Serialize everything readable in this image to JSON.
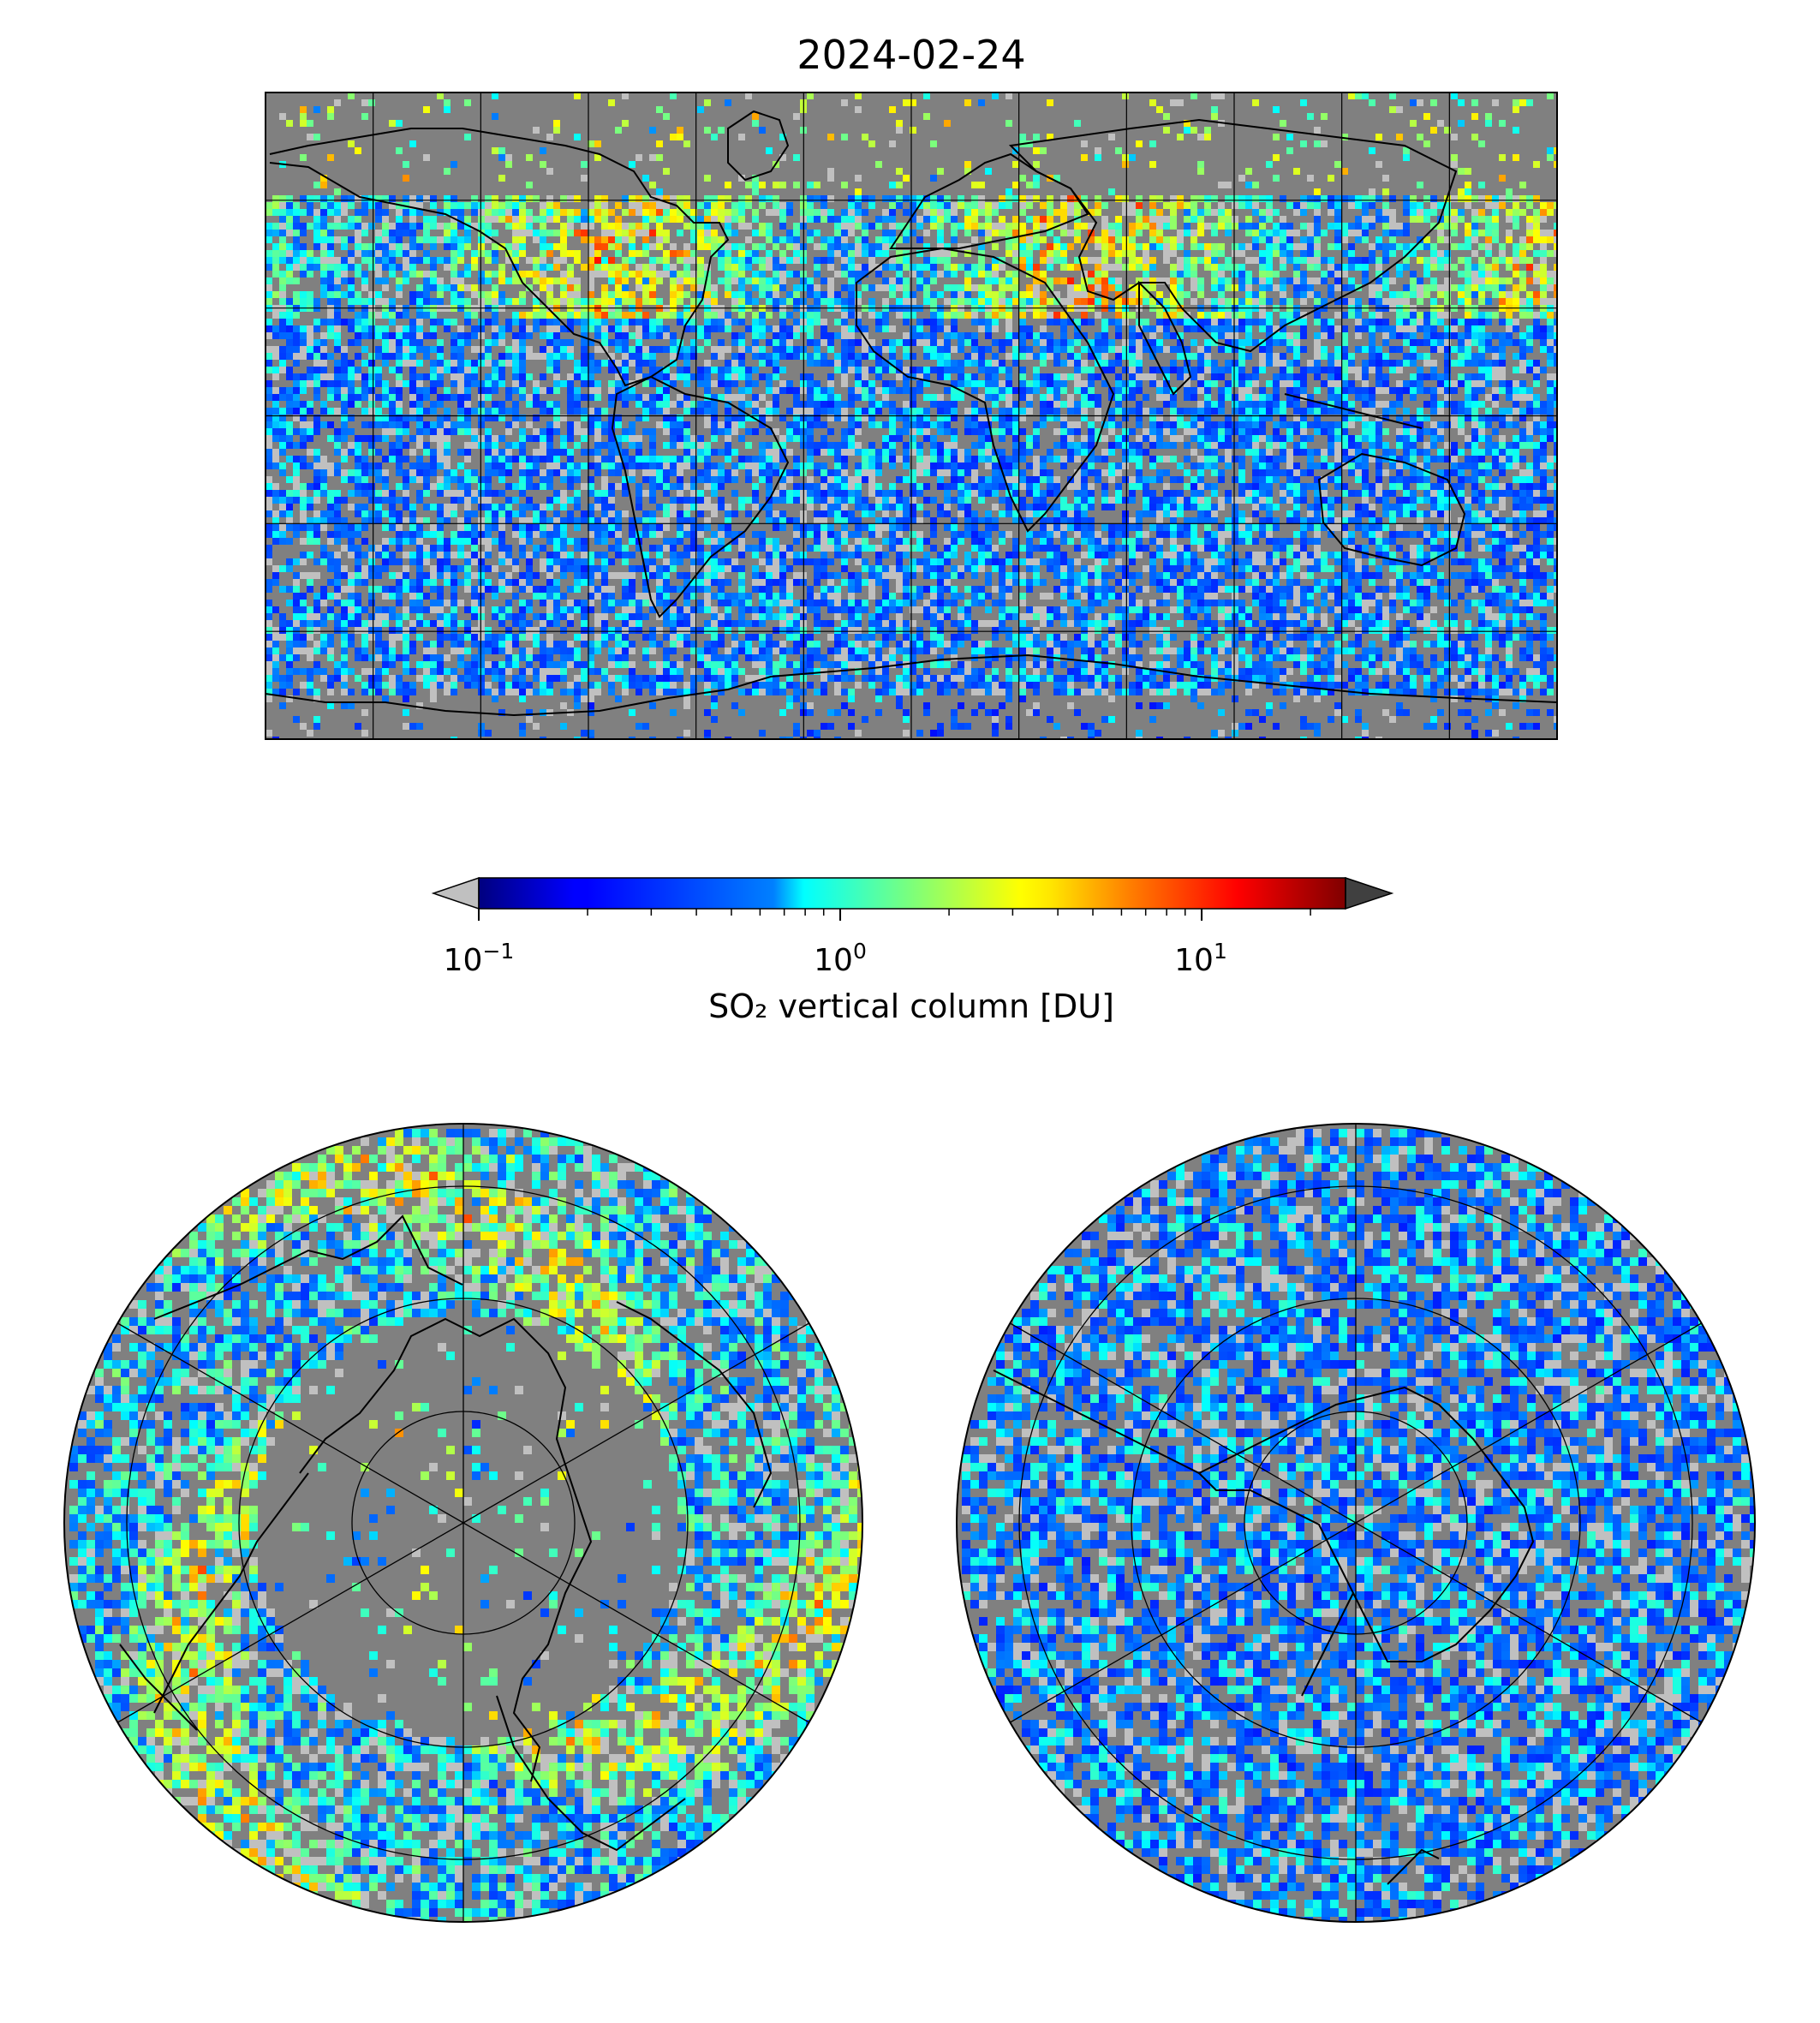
{
  "figure": {
    "title": "2024-02-24",
    "colors": {
      "background": "#ffffff",
      "map_fill": "#808080",
      "low_value": "#c0c0c0",
      "coastline": "#000000"
    }
  },
  "colorbar": {
    "label": "SO₂ vertical column [DU]",
    "scale": "log",
    "range": [
      0.1,
      25
    ],
    "ticks": [
      {
        "value": 0.1,
        "base": "10",
        "exponent": "−1"
      },
      {
        "value": 1,
        "base": "10",
        "exponent": "0"
      },
      {
        "value": 10,
        "base": "10",
        "exponent": "1"
      }
    ],
    "colormap": "jet",
    "extend_low_color": "#c0c0c0",
    "extend_high_color": "#404040"
  },
  "maps": [
    {
      "name": "global",
      "projection": "plate-carree",
      "gridlines": "30 degree"
    },
    {
      "name": "north-polar",
      "projection": "north-polar-stereographic"
    },
    {
      "name": "south-polar",
      "projection": "south-polar-stereographic"
    }
  ]
}
